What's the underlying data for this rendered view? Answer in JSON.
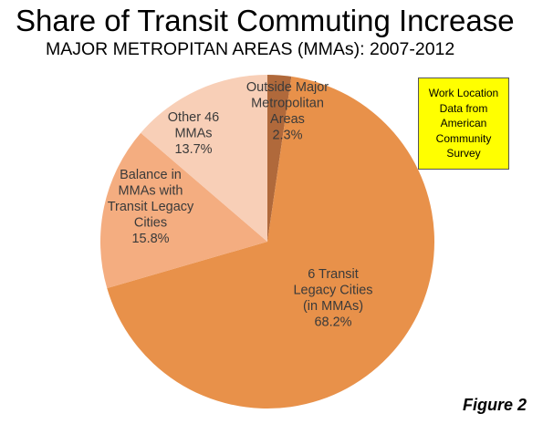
{
  "title": "Share of Transit Commuting Increase",
  "subtitle": "MAJOR METROPITAN AREAS (MMAs): 2007-2012",
  "note_box": {
    "lines": [
      "Work Location",
      "Data from",
      "American",
      "Community",
      "Survey"
    ],
    "color": "#ffff00"
  },
  "figure_label": "Figure 2",
  "chart_data": {
    "type": "pie",
    "title": "Share of Transit Commuting Increase",
    "subtitle": "MAJOR METROPITAN AREAS (MMAs): 2007-2012",
    "slices": [
      {
        "label_lines": [
          "Outside Major",
          "Metropolitan",
          "Areas",
          "2.3%"
        ],
        "value": 2.3,
        "color": "#b0693b"
      },
      {
        "label_lines": [
          "6 Transit",
          "Legacy Cities",
          "(in MMAs)",
          "68.2%"
        ],
        "value": 68.2,
        "color": "#e8914a"
      },
      {
        "label_lines": [
          "Balance in",
          "MMAs with",
          "Transit Legacy",
          "Cities",
          "15.8%"
        ],
        "value": 15.8,
        "color": "#f4ad80"
      },
      {
        "label_lines": [
          "Other 46",
          "MMAs",
          "13.7%"
        ],
        "value": 13.7,
        "color": "#f8cfb7"
      }
    ]
  }
}
